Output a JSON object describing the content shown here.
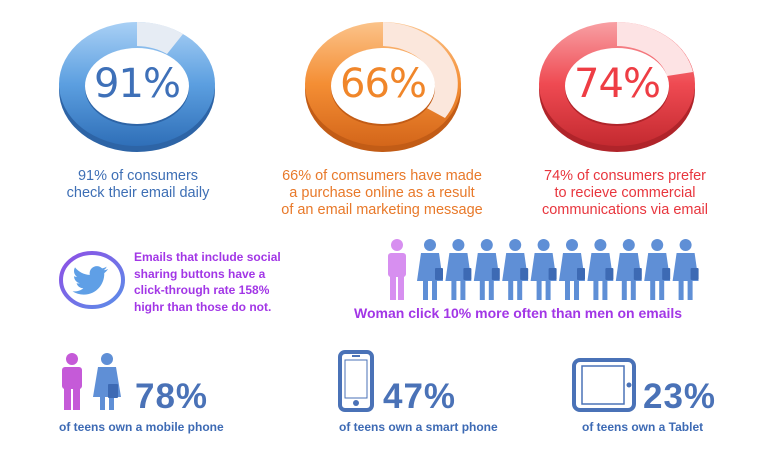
{
  "stats": [
    {
      "value": "91%",
      "caption_line1": "91% of consumers",
      "caption_line2": "check their email daily",
      "caption_line3": "",
      "color": "#4a8fd6",
      "fraction": 0.91
    },
    {
      "value": "66%",
      "caption_line1": "66% of comsumers have made",
      "caption_line2": "a purchase online as a result",
      "caption_line3": "of an email marketing message",
      "color": "#f0862a",
      "fraction": 0.66
    },
    {
      "value": "74%",
      "caption_line1": "74% of consumers prefer",
      "caption_line2": "to recieve commercial",
      "caption_line3": "communications via email",
      "color": "#ee3d44",
      "fraction": 0.74
    }
  ],
  "twitter": {
    "icon": "twitter-bird-icon",
    "line1": "Emails that include social",
    "line2": "sharing buttons have a",
    "line3": "click-through rate 158%",
    "line4": "highr than those do not."
  },
  "gender": {
    "caption": "Woman click 10% more often than men on emails",
    "male_icon": "man-icon",
    "female_icon": "woman-icon",
    "women_count": 10,
    "colors": {
      "male": "#d78ff0",
      "female": "#5f8fd6"
    }
  },
  "teens": [
    {
      "value": "78%",
      "caption": "of teens own a mobile phone",
      "icon": "man-woman-icon"
    },
    {
      "value": "47%",
      "caption": "of teens own a smart phone",
      "icon": "smartphone-icon"
    },
    {
      "value": "23%",
      "caption": "of teens own a Tablet",
      "icon": "tablet-icon"
    }
  ],
  "colors": {
    "blue": "#4a8fd6",
    "orange": "#f0862a",
    "red": "#ee3d44",
    "purple": "#a236e6",
    "dark_blue": "#3d6ab4"
  }
}
